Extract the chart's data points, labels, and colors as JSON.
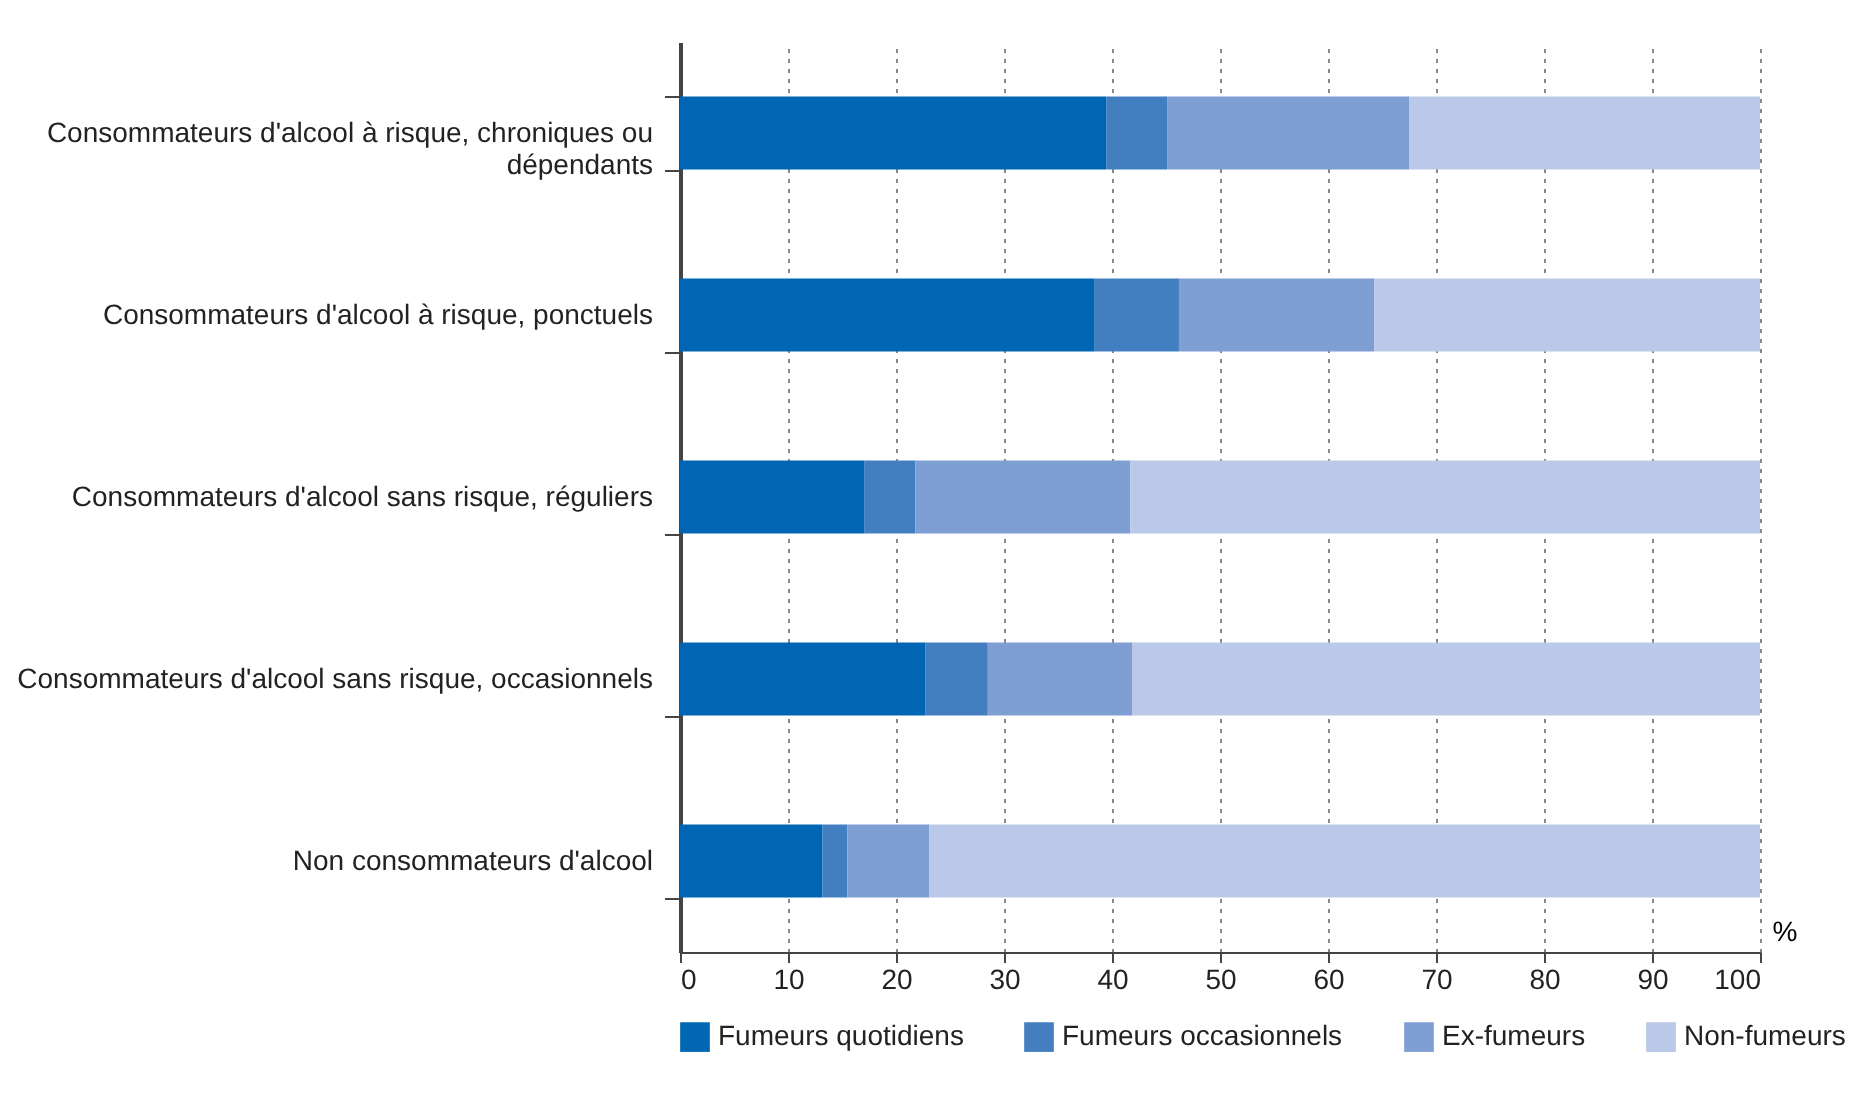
{
  "chart_data": {
    "type": "bar",
    "orientation": "horizontal",
    "stacked": true,
    "xlabel": "%",
    "categories": [
      "Consommateurs d'alcool à risque, chroniques ou dépendants",
      "Consommateurs d'alcool à risque, ponctuels",
      "Consommateurs d'alcool sans risque, réguliers",
      "Consommateurs d'alcool sans risque, occasionnels",
      "Non consommateurs d'alcool"
    ],
    "series": [
      {
        "name": "Fumeurs quotidiens",
        "color": "#0066b3",
        "values": [
          39.5,
          38.4,
          17.1,
          22.7,
          13.2
        ]
      },
      {
        "name": "Fumeurs occasionnels",
        "color": "#437ec0",
        "values": [
          5.6,
          7.8,
          4.7,
          5.8,
          2.3
        ]
      },
      {
        "name": "Ex-fumeurs",
        "color": "#7f9ed3",
        "values": [
          22.4,
          18.1,
          19.9,
          13.4,
          7.6
        ]
      },
      {
        "name": "Non-fumeurs",
        "color": "#b9c9e7",
        "values": [
          32.5,
          35.7,
          58.3,
          58.1,
          76.9
        ]
      }
    ],
    "xlim": [
      0,
      100
    ],
    "xticks": [
      0,
      10,
      20,
      30,
      40,
      50,
      60,
      70,
      80,
      90,
      100
    ],
    "grid": "x",
    "legend": "bottom"
  }
}
